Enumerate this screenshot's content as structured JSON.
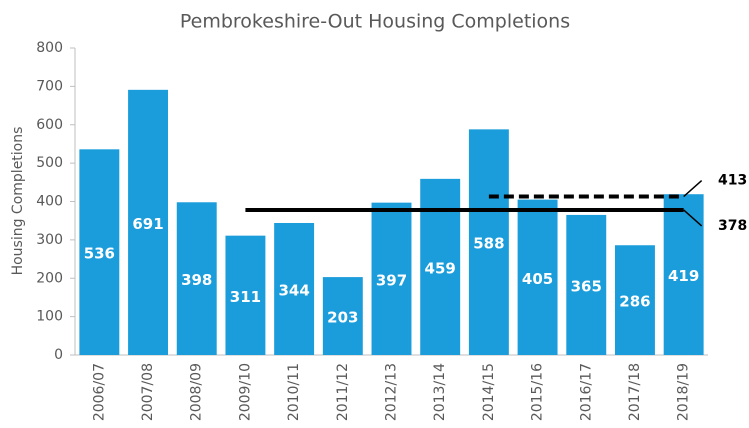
{
  "chart_data": {
    "type": "bar",
    "title": "Pembrokeshire-Out Housing Completions",
    "y_label": "Housing Completions",
    "categories": [
      "2006/07",
      "2007/08",
      "2008/09",
      "2009/10",
      "2010/11",
      "2011/12",
      "2012/13",
      "2013/14",
      "2014/15",
      "2015/16",
      "2016/17",
      "2017/18",
      "2018/19"
    ],
    "values": [
      536,
      691,
      398,
      311,
      344,
      203,
      397,
      459,
      588,
      405,
      365,
      286,
      419
    ],
    "color": "#1b9ddb",
    "ylim": [
      0,
      800
    ],
    "yticks": [
      0,
      100,
      200,
      300,
      400,
      500,
      600,
      700,
      800
    ],
    "grid": false,
    "reference_lines": [
      {
        "value": 378,
        "from": "2009/10",
        "to": "2018/19",
        "style": "solid"
      },
      {
        "value": 413,
        "from": "2014/15",
        "to": "2018/19",
        "style": "dashed"
      }
    ]
  }
}
